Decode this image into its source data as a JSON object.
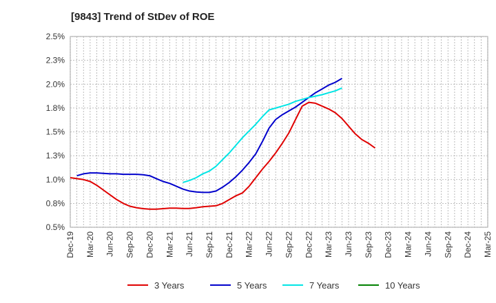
{
  "title": "[9843]  Trend of StDev of ROE",
  "chart_data": {
    "type": "line",
    "title": "[9843]  Trend of StDev of ROE",
    "xlabel": "",
    "ylabel": "",
    "x_ticks": [
      "Dec-19",
      "Mar-20",
      "Jun-20",
      "Sep-20",
      "Dec-20",
      "Mar-21",
      "Jun-21",
      "Sep-21",
      "Dec-21",
      "Mar-22",
      "Jun-22",
      "Sep-22",
      "Dec-22",
      "Mar-23",
      "Jun-23",
      "Sep-23",
      "Dec-23",
      "Mar-24",
      "Jun-24",
      "Sep-24",
      "Dec-24",
      "Mar-25"
    ],
    "y_ticks": [
      "0.5%",
      "0.8%",
      "1.0%",
      "1.3%",
      "1.5%",
      "1.8%",
      "2.0%",
      "2.3%",
      "2.5%"
    ],
    "ylim": [
      0.5,
      2.5
    ],
    "grid": true,
    "legend_position": "bottom",
    "series": [
      {
        "name": "3 Years",
        "color": "#e00000",
        "values": [
          1.02,
          1.01,
          1.0,
          0.98,
          0.94,
          0.89,
          0.84,
          0.79,
          0.75,
          0.72,
          0.705,
          0.695,
          0.69,
          0.69,
          0.695,
          0.7,
          0.7,
          0.697,
          0.697,
          0.705,
          0.715,
          0.72,
          0.725,
          0.75,
          0.79,
          0.83,
          0.86,
          0.93,
          1.02,
          1.11,
          1.19,
          1.28,
          1.38,
          1.49,
          1.63,
          1.77,
          1.81,
          1.8,
          1.77,
          1.74,
          1.7,
          1.64,
          1.56,
          1.48,
          1.42,
          1.38,
          1.33
        ]
      },
      {
        "name": "5 Years",
        "color": "#0000cc",
        "values": [
          null,
          1.04,
          1.06,
          1.07,
          1.07,
          1.065,
          1.06,
          1.06,
          1.055,
          1.055,
          1.055,
          1.05,
          1.04,
          1.01,
          0.98,
          0.96,
          0.93,
          0.9,
          0.88,
          0.87,
          0.865,
          0.865,
          0.88,
          0.92,
          0.97,
          1.03,
          1.1,
          1.18,
          1.27,
          1.4,
          1.54,
          1.63,
          1.68,
          1.72,
          1.76,
          1.81,
          1.86,
          1.91,
          1.95,
          1.99,
          2.02,
          2.06
        ]
      },
      {
        "name": "7 Years",
        "color": "#00e5e5",
        "values": [
          null,
          null,
          null,
          null,
          null,
          null,
          null,
          null,
          null,
          null,
          null,
          null,
          null,
          null,
          null,
          null,
          null,
          0.97,
          0.99,
          1.02,
          1.06,
          1.09,
          1.14,
          1.21,
          1.28,
          1.36,
          1.44,
          1.51,
          1.58,
          1.66,
          1.73,
          1.75,
          1.77,
          1.79,
          1.82,
          1.84,
          1.86,
          1.875,
          1.89,
          1.91,
          1.93,
          1.96
        ]
      },
      {
        "name": "10 Years",
        "color": "#008000",
        "values": []
      }
    ]
  }
}
